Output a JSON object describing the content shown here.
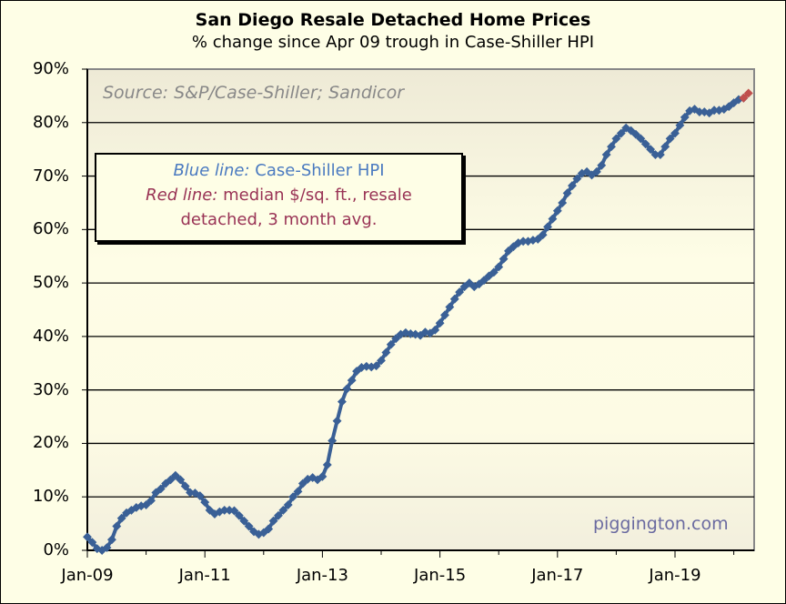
{
  "chart_data": {
    "type": "line",
    "title": "San Diego Resale Detached Home Prices",
    "subtitle": "% change since Apr 09 trough in Case-Shiller HPI",
    "source": "Source: S&P/Case-Shiller; Sandicor",
    "watermark": "piggington.com",
    "legend": {
      "blue_label": "Blue line:",
      "blue_text": " Case-Shiller HPI",
      "red_label": "Red line:",
      "red_text1": " median $/sq. ft., resale",
      "red_text2": "detached, 3 month avg."
    },
    "ylim": [
      0,
      90
    ],
    "yticks": [
      "0%",
      "10%",
      "20%",
      "30%",
      "40%",
      "50%",
      "60%",
      "70%",
      "80%",
      "90%"
    ],
    "xticks": [
      "Jan-09",
      "Jan-11",
      "Jan-13",
      "Jan-15",
      "Jan-17",
      "Jan-19"
    ],
    "x_start": "2009-01",
    "grid": "horizontal",
    "colors": {
      "blue": "#3a6096",
      "red": "#c0504d"
    },
    "series": [
      {
        "color": "blue",
        "start": "2009-01",
        "values": [
          2.5,
          1.5,
          0.3,
          0,
          0.5,
          2,
          4.5,
          6,
          7,
          7.5,
          8,
          8.3,
          8.5,
          9.3,
          10.8,
          11.5,
          12.5,
          13.2,
          14,
          13.2,
          12,
          10.8,
          10.7,
          10.2,
          9,
          7.5,
          6.8,
          7.2,
          7.5,
          7.5,
          7.4,
          6.5,
          5.5,
          4.5,
          3.5,
          3,
          3.3,
          4,
          5.5,
          6.5,
          7.5,
          8.5,
          10,
          11,
          12.5,
          13.3,
          13.6,
          13.2,
          13.8,
          16,
          20.5,
          24.2,
          27.8,
          30.2,
          31.8,
          33.5,
          34.2,
          34.4,
          34.3,
          34.5,
          35.5,
          37,
          38.5,
          39.6,
          40.4,
          40.7,
          40.5,
          40.4,
          40.2,
          40.8,
          40.6,
          41.2,
          42.5,
          44,
          45.5,
          47,
          48.3,
          49.3,
          50,
          49.3,
          49.8,
          50.5,
          51.3,
          52,
          53,
          54.5,
          56,
          56.8,
          57.5,
          57.8,
          57.8,
          58,
          58.2,
          59,
          60.5,
          62,
          63.5,
          65,
          66.8,
          68.2,
          69.5,
          70.5,
          70.8,
          70.2,
          70.8,
          72,
          74,
          75.5,
          77,
          78,
          79,
          78.5,
          77.8,
          77,
          76,
          75,
          74,
          74,
          75.5,
          77,
          78,
          79.5,
          81,
          82.2,
          82.5,
          82,
          82,
          81.8,
          82.3,
          82.3,
          82.5,
          83,
          83.7,
          84.3,
          84.6
        ]
      },
      {
        "color": "red",
        "start": "2020-03",
        "values": [
          84.6,
          85.5
        ]
      }
    ]
  }
}
